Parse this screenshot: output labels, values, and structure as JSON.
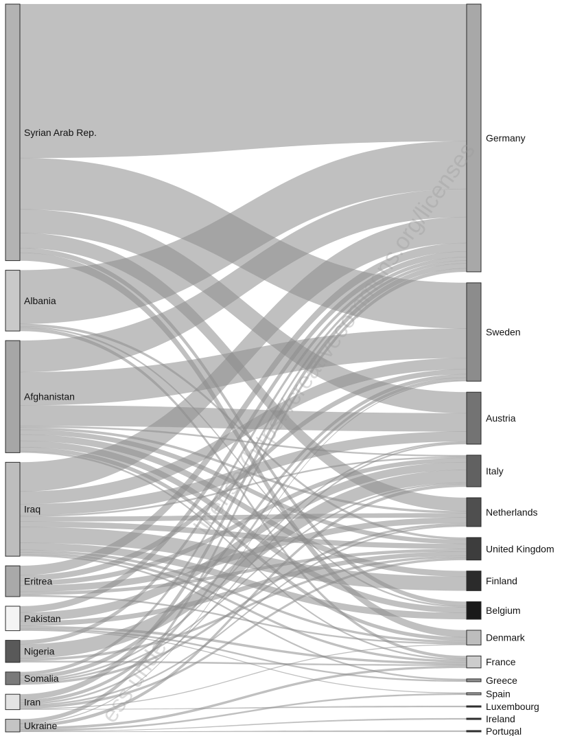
{
  "chart_data": {
    "type": "sankey",
    "sources": [
      {
        "name": "Syrian Arab Rep.",
        "color": "#b3b3b3"
      },
      {
        "name": "Albania",
        "color": "#c9c9c9"
      },
      {
        "name": "Afghanistan",
        "color": "#a6a6a6"
      },
      {
        "name": "Iraq",
        "color": "#bdbdbd"
      },
      {
        "name": "Eritrea",
        "color": "#a9a9a9"
      },
      {
        "name": "Pakistan",
        "color": "#f4f4f4"
      },
      {
        "name": "Nigeria",
        "color": "#595959"
      },
      {
        "name": "Somalia",
        "color": "#7a7a7a"
      },
      {
        "name": "Iran",
        "color": "#e3e3e3"
      },
      {
        "name": "Ukraine",
        "color": "#c4c4c4"
      }
    ],
    "targets": [
      {
        "name": "Germany",
        "color": "#a8a8a8"
      },
      {
        "name": "Sweden",
        "color": "#8c8c8c"
      },
      {
        "name": "Austria",
        "color": "#737373"
      },
      {
        "name": "Italy",
        "color": "#616161"
      },
      {
        "name": "Netherlands",
        "color": "#4f4f4f"
      },
      {
        "name": "United Kingdom",
        "color": "#3d3d3d"
      },
      {
        "name": "Finland",
        "color": "#2b2b2b"
      },
      {
        "name": "Belgium",
        "color": "#1a1a1a"
      },
      {
        "name": "Denmark",
        "color": "#bdbdbd"
      },
      {
        "name": "France",
        "color": "#cccccc"
      },
      {
        "name": "Greece",
        "color": "#8f8f8f"
      },
      {
        "name": "Spain",
        "color": "#9e9e9e"
      },
      {
        "name": "Luxembourg",
        "color": "#333333"
      },
      {
        "name": "Ireland",
        "color": "#333333"
      },
      {
        "name": "Portugal",
        "color": "#333333"
      }
    ],
    "flows": [
      {
        "source": "Syrian Arab Rep.",
        "target": "Germany",
        "value": 195
      },
      {
        "source": "Syrian Arab Rep.",
        "target": "Sweden",
        "value": 65
      },
      {
        "source": "Syrian Arab Rep.",
        "target": "Austria",
        "value": 30
      },
      {
        "source": "Syrian Arab Rep.",
        "target": "Netherlands",
        "value": 19
      },
      {
        "source": "Syrian Arab Rep.",
        "target": "Denmark",
        "value": 10
      },
      {
        "source": "Syrian Arab Rep.",
        "target": "Belgium",
        "value": 6
      },
      {
        "source": "Albania",
        "target": "Germany",
        "value": 68
      },
      {
        "source": "Albania",
        "target": "France",
        "value": 4
      },
      {
        "source": "Albania",
        "target": "United Kingdom",
        "value": 3
      },
      {
        "source": "Albania",
        "target": "Belgium",
        "value": 2
      },
      {
        "source": "Afghanistan",
        "target": "Germany",
        "value": 40
      },
      {
        "source": "Afghanistan",
        "target": "Sweden",
        "value": 42
      },
      {
        "source": "Afghanistan",
        "target": "Austria",
        "value": 26
      },
      {
        "source": "Afghanistan",
        "target": "Finland",
        "value": 8
      },
      {
        "source": "Afghanistan",
        "target": "Belgium",
        "value": 8
      },
      {
        "source": "Afghanistan",
        "target": "United Kingdom",
        "value": 6
      },
      {
        "source": "Afghanistan",
        "target": "Denmark",
        "value": 5
      },
      {
        "source": "Afghanistan",
        "target": "Netherlands",
        "value": 3
      },
      {
        "source": "Afghanistan",
        "target": "Italy",
        "value": 2
      },
      {
        "source": "Afghanistan",
        "target": "France",
        "value": 2
      },
      {
        "source": "Iraq",
        "target": "Germany",
        "value": 37
      },
      {
        "source": "Iraq",
        "target": "Finland",
        "value": 20
      },
      {
        "source": "Iraq",
        "target": "Sweden",
        "value": 16
      },
      {
        "source": "Iraq",
        "target": "Austria",
        "value": 14
      },
      {
        "source": "Iraq",
        "target": "Belgium",
        "value": 9
      },
      {
        "source": "Iraq",
        "target": "United Kingdom",
        "value": 7
      },
      {
        "source": "Iraq",
        "target": "Netherlands",
        "value": 6
      },
      {
        "source": "Iraq",
        "target": "Denmark",
        "value": 3
      },
      {
        "source": "Iraq",
        "target": "France",
        "value": 3
      },
      {
        "source": "Iraq",
        "target": "Italy",
        "value": 2
      },
      {
        "source": "Iraq",
        "target": "Greece",
        "value": 2
      },
      {
        "source": "Eritrea",
        "target": "Germany",
        "value": 12
      },
      {
        "source": "Eritrea",
        "target": "Netherlands",
        "value": 8
      },
      {
        "source": "Eritrea",
        "target": "Italy",
        "value": 6
      },
      {
        "source": "Eritrea",
        "target": "Sweden",
        "value": 7
      },
      {
        "source": "Eritrea",
        "target": "United Kingdom",
        "value": 4
      },
      {
        "source": "Eritrea",
        "target": "Denmark",
        "value": 2
      },
      {
        "source": "Pakistan",
        "target": "Italy",
        "value": 11
      },
      {
        "source": "Pakistan",
        "target": "Germany",
        "value": 8
      },
      {
        "source": "Pakistan",
        "target": "United Kingdom",
        "value": 6
      },
      {
        "source": "Pakistan",
        "target": "France",
        "value": 3
      },
      {
        "source": "Pakistan",
        "target": "Spain",
        "value": 1
      },
      {
        "source": "Pakistan",
        "target": "Greece",
        "value": 2
      },
      {
        "source": "Nigeria",
        "target": "Italy",
        "value": 18
      },
      {
        "source": "Nigeria",
        "target": "Germany",
        "value": 5
      },
      {
        "source": "Nigeria",
        "target": "United Kingdom",
        "value": 3
      },
      {
        "source": "Nigeria",
        "target": "France",
        "value": 2
      },
      {
        "source": "Somalia",
        "target": "Sweden",
        "value": 5
      },
      {
        "source": "Somalia",
        "target": "Germany",
        "value": 4
      },
      {
        "source": "Somalia",
        "target": "Netherlands",
        "value": 3
      },
      {
        "source": "Somalia",
        "target": "Italy",
        "value": 2
      },
      {
        "source": "Somalia",
        "target": "Austria",
        "value": 2
      },
      {
        "source": "Iran",
        "target": "Germany",
        "value": 7
      },
      {
        "source": "Iran",
        "target": "Sweden",
        "value": 4
      },
      {
        "source": "Iran",
        "target": "United Kingdom",
        "value": 3
      },
      {
        "source": "Iran",
        "target": "Netherlands",
        "value": 2
      },
      {
        "source": "Iran",
        "target": "Austria",
        "value": 2
      },
      {
        "source": "Iran",
        "target": "Denmark",
        "value": 1
      },
      {
        "source": "Iran",
        "target": "Luxembourg",
        "value": 0.5
      },
      {
        "source": "Ukraine",
        "target": "Germany",
        "value": 5
      },
      {
        "source": "Ukraine",
        "target": "Italy",
        "value": 4
      },
      {
        "source": "Ukraine",
        "target": "France",
        "value": 3
      },
      {
        "source": "Ukraine",
        "target": "Spain",
        "value": 2
      },
      {
        "source": "Ukraine",
        "target": "Sweden",
        "value": 1
      },
      {
        "source": "Ukraine",
        "target": "Ireland",
        "value": 0.5
      },
      {
        "source": "Ukraine",
        "target": "Portugal",
        "value": 0.5
      }
    ]
  },
  "watermark": {
    "text_lower": "ess unde",
    "text_upper": "license (https://creativecommons.org/licenses"
  }
}
